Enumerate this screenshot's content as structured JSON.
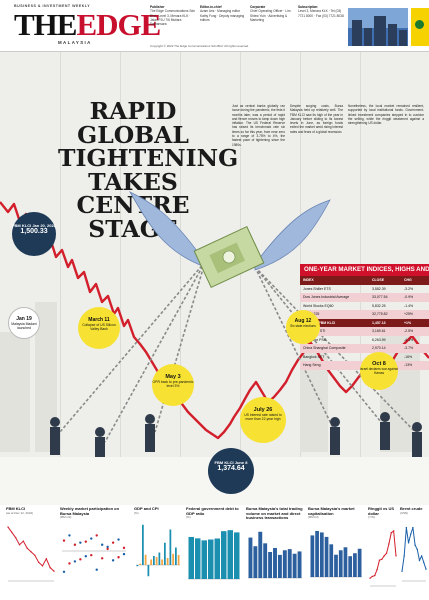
{
  "masthead": {
    "tagline": "BUSINESS & INVESTMENT WEEKLY",
    "logo": "THEEDGE",
    "edition": "MALAYSIA",
    "credits": [
      {
        "title": "Publisher",
        "text": "The Edge Communications Sdn Bhd · Level 3, Menara KLK · Jalan PJU 7/6 Mutiara Damansara"
      },
      {
        "title": "Editor-in-chief",
        "text": "Azam Aris · Managing editor Kathy Fong · Deputy managing editors"
      },
      {
        "title": "Corporate",
        "text": "Chief Operating Officer · Lim Shiew Yuin · Advertising & Marketing"
      },
      {
        "title": "Subscription",
        "text": "Level 3, Menara KLK · Tel (03) 7721 8000 · Fax (03) 7721 8038"
      }
    ],
    "copyright": "Copyright © 2022 The Edge Communications Sdn Bhd. All rights reserved."
  },
  "headline": "RAPID GLOBAL TIGHTENING TAKES CENTRE STAGE",
  "body_columns": [
    "Just as central banks globally ran loose during the pandemic, the feds it months later, was a period of rapid and fiercer moves to tamp down high inflation. The US Federal Reserve has raised its benchmark rate six times so far this year, from near zero to a range of 3.75% to 4%, the fastest pace of tightening since the 1980s.",
    "Despite surging costs, Bursa Malaysia held up relatively well. The FBM KLCI saw its high of the year in January before sliding to its lowest levels in June, as foreign funds exited the market amid rising interest rates and fears of a global recession.",
    "Nonetheless, the local market remained resilient, supported by local institutional funds. Government-linked investment companies stepped in to cushion the selling, while the ringgit weakened against a strengthening US dollar."
  ],
  "callouts": [
    {
      "date": "FBM KLCI Jan 20, 2022",
      "text": "1,500.33"
    },
    {
      "date": "Jan 19",
      "text": "Malaysia Madani launched"
    },
    {
      "date": "March 11",
      "text": "Collapse of US Silicon Valley Bank"
    },
    {
      "date": "May 3",
      "text": "OPR back to pre-pandemic level 3%"
    },
    {
      "date": "July 26",
      "text": "US interest rate raised to more than 22-year high"
    },
    {
      "date": "FBM KLCI June 8",
      "text": "1,374.64"
    },
    {
      "date": "Aug 12",
      "text": "Six state elections"
    },
    {
      "date": "Oct 8",
      "text": "Israel declares war against Hamas"
    }
  ],
  "indices": {
    "title": "ONE-YEAR MARKET INDICES, HIGHS AND LOWS",
    "columns": [
      "INDEX",
      "CLOSE",
      "CHG"
    ],
    "rows": [
      {
        "name": "Jones Shiller ETS",
        "v1": "3,582.39",
        "v2": "-3.2%"
      },
      {
        "name": "Dow Jones Industrial Average",
        "v1": "33,077.54",
        "v2": "-0.9%"
      },
      {
        "name": "World Stocks EQ60",
        "v1": "5,832.25",
        "v2": "-1.4%"
      },
      {
        "name": "Nikkei 225",
        "v1": "32,775.82",
        "v2": "+25%"
      },
      {
        "name": "Malaysia FBM KLCI",
        "v1": "1,457.13",
        "v2": "+1%",
        "group": true
      },
      {
        "name": "Singapore STI",
        "v1": "3,169.61",
        "v2": "-2.5%"
      },
      {
        "name": "Philippine PSE",
        "v1": "6,263.99",
        "v2": "-4.1%"
      },
      {
        "name": "China Shanghai Composite",
        "v1": "2,970.14",
        "v2": "-3.7%"
      },
      {
        "name": "Bangkok SET",
        "v1": "1,398.50",
        "v2": "-16%"
      },
      {
        "name": "Hang Seng",
        "v1": "17,076.84",
        "v2": "-13%"
      }
    ]
  },
  "chart_data": [
    {
      "type": "line",
      "title": "FBM KLCI",
      "subtitle": "(as at Dec 12, 2022)",
      "values": [
        1500,
        1485,
        1470,
        1450,
        1460,
        1440,
        1430,
        1420,
        1400,
        1390,
        1410,
        1385,
        1375
      ],
      "ylim": [
        1350,
        1520
      ]
    },
    {
      "type": "scatter",
      "title": "Weekly market participation on Bursa Malaysia",
      "subtitle": "(RM mil)",
      "series": [
        {
          "name": "Local institutions",
          "values": [
            -200,
            150,
            -100,
            80,
            -50,
            120,
            -180,
            60,
            40,
            -90,
            110,
            -30
          ]
        },
        {
          "name": "Foreign institutions",
          "values": [
            100,
            -120,
            60,
            -80,
            90,
            -40,
            150,
            -70,
            20,
            80,
            -60,
            30
          ]
        }
      ],
      "ylim": [
        -250,
        250
      ]
    },
    {
      "type": "bar",
      "title": "GDP and CPI",
      "subtitle": "(%)",
      "categories": [
        "1Q21",
        "2Q21",
        "3Q21",
        "4Q21",
        "1Q22",
        "2Q22",
        "3Q22",
        "4Q22"
      ],
      "series": [
        {
          "name": "GDP",
          "values": [
            -0.5,
            16.1,
            -4.5,
            3.6,
            5.0,
            8.9,
            14.2,
            7.0
          ]
        },
        {
          "name": "CPI",
          "values": [
            0.5,
            4.1,
            2.2,
            3.2,
            2.2,
            2.8,
            4.5,
            4.0
          ]
        }
      ],
      "ylim": [
        -6,
        18
      ]
    },
    {
      "type": "bar",
      "title": "Federal government debt to GDP ratio",
      "subtitle": "(%)",
      "categories": [
        "2015",
        "2016",
        "2017",
        "2018",
        "2019",
        "2020",
        "2021",
        "2022"
      ],
      "values": [
        54.5,
        52.7,
        50.1,
        51.2,
        52.5,
        62.0,
        63.3,
        60.4
      ],
      "ylim": [
        0,
        70
      ]
    },
    {
      "type": "bar",
      "title": "Bursa Malaysia's total trading volume on market and direct business transactions",
      "subtitle": "",
      "categories": [
        "J",
        "F",
        "M",
        "A",
        "M",
        "J",
        "J",
        "A",
        "S",
        "O",
        "N"
      ],
      "values": [
        70,
        55,
        80,
        60,
        45,
        52,
        40,
        48,
        50,
        42,
        46
      ],
      "ylim": [
        0,
        90
      ]
    },
    {
      "type": "bar",
      "title": "Bursa Malaysia's market capitalisation",
      "subtitle": "(RM bil)",
      "categories": [
        "J",
        "F",
        "M",
        "A",
        "M",
        "J",
        "J",
        "A",
        "S",
        "O",
        "N"
      ],
      "values": [
        1780,
        1810,
        1800,
        1770,
        1720,
        1650,
        1680,
        1700,
        1640,
        1660,
        1690
      ],
      "ylim": [
        1500,
        1850
      ]
    },
    {
      "type": "line",
      "title": "Ringgit vs US dollar",
      "subtitle": "(Y/S)",
      "values": [
        4.18,
        4.2,
        4.21,
        4.28,
        4.39,
        4.4,
        4.44,
        4.47,
        4.58,
        4.71,
        4.73,
        4.44
      ],
      "ylim": [
        4.1,
        4.8
      ]
    },
    {
      "type": "line",
      "title": "Brent crude",
      "subtitle": "(US$)",
      "values": [
        78,
        92,
        118,
        104,
        112,
        118,
        102,
        98,
        88,
        92,
        86,
        80
      ],
      "ylim": [
        70,
        125
      ]
    }
  ]
}
